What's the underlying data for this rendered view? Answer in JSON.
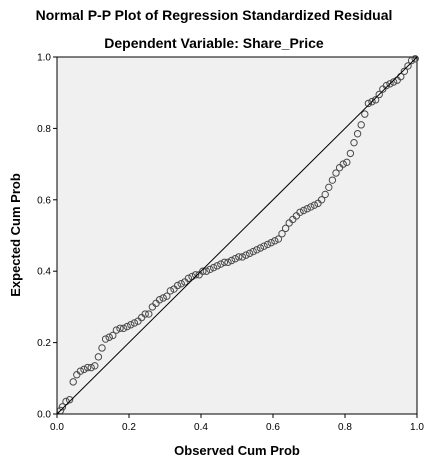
{
  "chart_data": {
    "type": "scatter",
    "title": "Normal P-P Plot of Regression Standardized Residual",
    "subtitle": "Dependent Variable: Share_Price",
    "xlabel": "Observed Cum Prob",
    "ylabel": "Expected Cum Prob",
    "xlim": [
      0,
      1
    ],
    "ylim": [
      0,
      1
    ],
    "xticks": [
      "0.0",
      "0.2",
      "0.4",
      "0.6",
      "0.8",
      "1.0"
    ],
    "yticks": [
      "0.0",
      "0.2",
      "0.4",
      "0.6",
      "0.8",
      "1.0"
    ],
    "grid": false,
    "reference_line": {
      "from": [
        0,
        0
      ],
      "to": [
        1,
        1
      ]
    },
    "colors": {
      "plot_bg": "#f0f0f0",
      "marker": "#4a4a4a",
      "line": "#000000"
    },
    "points": [
      [
        0.01,
        0.01
      ],
      [
        0.015,
        0.02
      ],
      [
        0.025,
        0.035
      ],
      [
        0.035,
        0.04
      ],
      [
        0.045,
        0.09
      ],
      [
        0.055,
        0.11
      ],
      [
        0.065,
        0.12
      ],
      [
        0.075,
        0.125
      ],
      [
        0.085,
        0.13
      ],
      [
        0.095,
        0.13
      ],
      [
        0.105,
        0.135
      ],
      [
        0.115,
        0.16
      ],
      [
        0.125,
        0.185
      ],
      [
        0.135,
        0.21
      ],
      [
        0.145,
        0.215
      ],
      [
        0.155,
        0.22
      ],
      [
        0.165,
        0.235
      ],
      [
        0.175,
        0.24
      ],
      [
        0.185,
        0.24
      ],
      [
        0.195,
        0.245
      ],
      [
        0.205,
        0.25
      ],
      [
        0.215,
        0.255
      ],
      [
        0.225,
        0.26
      ],
      [
        0.235,
        0.27
      ],
      [
        0.245,
        0.28
      ],
      [
        0.255,
        0.28
      ],
      [
        0.265,
        0.3
      ],
      [
        0.275,
        0.31
      ],
      [
        0.285,
        0.32
      ],
      [
        0.295,
        0.325
      ],
      [
        0.305,
        0.33
      ],
      [
        0.315,
        0.345
      ],
      [
        0.325,
        0.35
      ],
      [
        0.335,
        0.36
      ],
      [
        0.345,
        0.365
      ],
      [
        0.355,
        0.37
      ],
      [
        0.365,
        0.38
      ],
      [
        0.375,
        0.385
      ],
      [
        0.385,
        0.39
      ],
      [
        0.395,
        0.39
      ],
      [
        0.405,
        0.4
      ],
      [
        0.415,
        0.4
      ],
      [
        0.425,
        0.405
      ],
      [
        0.435,
        0.41
      ],
      [
        0.445,
        0.415
      ],
      [
        0.455,
        0.42
      ],
      [
        0.465,
        0.425
      ],
      [
        0.475,
        0.425
      ],
      [
        0.485,
        0.43
      ],
      [
        0.495,
        0.435
      ],
      [
        0.505,
        0.44
      ],
      [
        0.515,
        0.44
      ],
      [
        0.525,
        0.445
      ],
      [
        0.535,
        0.45
      ],
      [
        0.545,
        0.455
      ],
      [
        0.555,
        0.46
      ],
      [
        0.565,
        0.465
      ],
      [
        0.575,
        0.47
      ],
      [
        0.585,
        0.475
      ],
      [
        0.595,
        0.48
      ],
      [
        0.605,
        0.485
      ],
      [
        0.615,
        0.49
      ],
      [
        0.625,
        0.505
      ],
      [
        0.635,
        0.52
      ],
      [
        0.645,
        0.535
      ],
      [
        0.655,
        0.545
      ],
      [
        0.665,
        0.555
      ],
      [
        0.675,
        0.565
      ],
      [
        0.685,
        0.57
      ],
      [
        0.695,
        0.575
      ],
      [
        0.705,
        0.58
      ],
      [
        0.715,
        0.585
      ],
      [
        0.725,
        0.59
      ],
      [
        0.735,
        0.6
      ],
      [
        0.745,
        0.615
      ],
      [
        0.755,
        0.635
      ],
      [
        0.765,
        0.655
      ],
      [
        0.775,
        0.675
      ],
      [
        0.785,
        0.69
      ],
      [
        0.795,
        0.7
      ],
      [
        0.805,
        0.705
      ],
      [
        0.815,
        0.73
      ],
      [
        0.825,
        0.76
      ],
      [
        0.835,
        0.785
      ],
      [
        0.845,
        0.81
      ],
      [
        0.855,
        0.84
      ],
      [
        0.865,
        0.87
      ],
      [
        0.875,
        0.875
      ],
      [
        0.885,
        0.88
      ],
      [
        0.895,
        0.895
      ],
      [
        0.905,
        0.91
      ],
      [
        0.915,
        0.92
      ],
      [
        0.925,
        0.925
      ],
      [
        0.935,
        0.93
      ],
      [
        0.945,
        0.935
      ],
      [
        0.955,
        0.945
      ],
      [
        0.965,
        0.96
      ],
      [
        0.975,
        0.975
      ],
      [
        0.985,
        0.99
      ],
      [
        0.995,
        0.995
      ]
    ]
  }
}
